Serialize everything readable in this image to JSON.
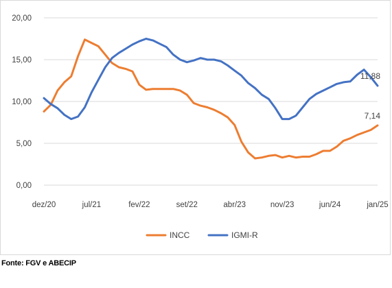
{
  "chart_data": {
    "type": "line",
    "x_tick_labels": [
      "dez/20",
      "jul/21",
      "fev/22",
      "set/22",
      "abr/23",
      "nov/23",
      "jun/24",
      "jan/25"
    ],
    "y_tick_labels": [
      "0,00",
      "5,00",
      "10,00",
      "15,00",
      "20,00"
    ],
    "ylim": [
      0,
      20
    ],
    "grid": "horizontal",
    "legend_position": "bottom",
    "x": [
      "dez/20",
      "jan/21",
      "fev/21",
      "mar/21",
      "abr/21",
      "mai/21",
      "jun/21",
      "jul/21",
      "ago/21",
      "set/21",
      "out/21",
      "nov/21",
      "dez/21",
      "jan/22",
      "fev/22",
      "mar/22",
      "abr/22",
      "mai/22",
      "jun/22",
      "jul/22",
      "ago/22",
      "set/22",
      "out/22",
      "nov/22",
      "dez/22",
      "jan/23",
      "fev/23",
      "mar/23",
      "abr/23",
      "mai/23",
      "jun/23",
      "jul/23",
      "ago/23",
      "set/23",
      "out/23",
      "nov/23",
      "dez/23",
      "jan/24",
      "fev/24",
      "mar/24",
      "abr/24",
      "mai/24",
      "jun/24",
      "jul/24",
      "ago/24",
      "set/24",
      "out/24",
      "nov/24",
      "dez/24",
      "jan/25"
    ],
    "series": [
      {
        "name": "INCC",
        "color": "#ED7D31",
        "values": [
          8.8,
          9.6,
          11.3,
          12.3,
          13.0,
          15.4,
          17.4,
          17.0,
          16.6,
          15.6,
          14.6,
          14.1,
          13.9,
          13.6,
          12.0,
          11.4,
          11.5,
          11.5,
          11.5,
          11.5,
          11.3,
          10.8,
          9.8,
          9.5,
          9.3,
          9.0,
          8.6,
          8.1,
          7.2,
          5.2,
          3.9,
          3.2,
          3.3,
          3.5,
          3.6,
          3.3,
          3.5,
          3.3,
          3.4,
          3.4,
          3.7,
          4.1,
          4.1,
          4.6,
          5.3,
          5.6,
          6.0,
          6.3,
          6.6,
          7.14
        ],
        "end_label": "7,14"
      },
      {
        "name": "IGMI-R",
        "color": "#4472C4",
        "values": [
          10.4,
          9.7,
          9.2,
          8.4,
          7.9,
          8.2,
          9.3,
          11.1,
          12.6,
          14.1,
          15.2,
          15.8,
          16.3,
          16.8,
          17.2,
          17.5,
          17.3,
          16.9,
          16.5,
          15.6,
          15.0,
          14.7,
          14.9,
          15.2,
          15.0,
          15.0,
          14.8,
          14.3,
          13.7,
          13.1,
          12.2,
          11.6,
          10.8,
          10.3,
          9.2,
          7.9,
          7.9,
          8.3,
          9.3,
          10.3,
          10.9,
          11.3,
          11.7,
          12.1,
          12.3,
          12.4,
          13.2,
          13.8,
          12.9,
          11.88
        ],
        "end_label": "11,88"
      }
    ]
  },
  "source_text": "Fonte: FGV e ABECIP"
}
